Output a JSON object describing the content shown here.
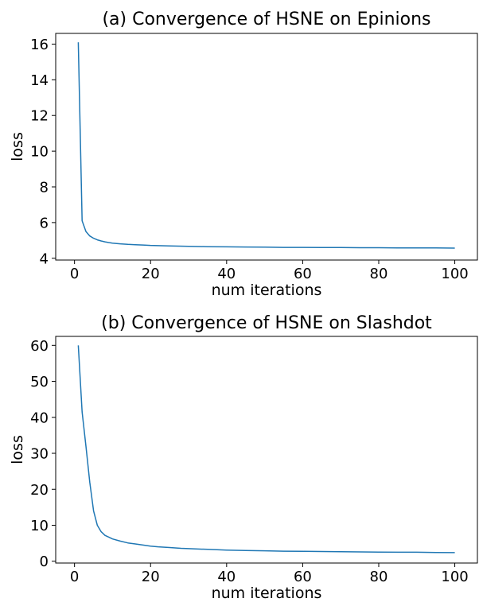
{
  "chart_data": [
    {
      "type": "line",
      "title": "(a) Convergence of HSNE on Epinions",
      "xlabel": "num iterations",
      "ylabel": "loss",
      "xlim": [
        -4.95,
        105.95
      ],
      "ylim": [
        3.9,
        16.6
      ],
      "xticks": [
        0,
        20,
        40,
        60,
        80,
        100
      ],
      "yticks": [
        4,
        6,
        8,
        10,
        12,
        14,
        16
      ],
      "grid": false,
      "color": "#1f77b4",
      "series": [
        {
          "x": [
            1,
            2,
            3,
            4,
            5,
            6,
            7,
            8,
            9,
            10,
            12,
            14,
            16,
            18,
            20,
            25,
            30,
            35,
            40,
            45,
            50,
            55,
            60,
            65,
            70,
            75,
            80,
            85,
            90,
            95,
            100
          ],
          "values": [
            16.1,
            6.1,
            5.5,
            5.25,
            5.12,
            5.03,
            4.97,
            4.92,
            4.88,
            4.85,
            4.81,
            4.78,
            4.76,
            4.74,
            4.72,
            4.69,
            4.67,
            4.65,
            4.64,
            4.63,
            4.62,
            4.61,
            4.61,
            4.6,
            4.6,
            4.59,
            4.59,
            4.58,
            4.58,
            4.58,
            4.57
          ]
        }
      ]
    },
    {
      "type": "line",
      "title": "(b) Convergence of HSNE on Slashdot",
      "xlabel": "num iterations",
      "ylabel": "loss",
      "xlim": [
        -4.95,
        105.95
      ],
      "ylim": [
        -0.5,
        62.5
      ],
      "xticks": [
        0,
        20,
        40,
        60,
        80,
        100
      ],
      "yticks": [
        0,
        10,
        20,
        30,
        40,
        50,
        60
      ],
      "grid": false,
      "color": "#1f77b4",
      "series": [
        {
          "x": [
            1,
            2,
            3,
            4,
            5,
            6,
            7,
            8,
            9,
            10,
            12,
            14,
            16,
            18,
            20,
            22,
            25,
            28,
            30,
            35,
            40,
            45,
            50,
            55,
            60,
            65,
            70,
            75,
            80,
            85,
            90,
            95,
            100
          ],
          "values": [
            60,
            41.5,
            32,
            22,
            14,
            10,
            8.2,
            7.2,
            6.7,
            6.2,
            5.6,
            5.1,
            4.8,
            4.5,
            4.2,
            4.0,
            3.8,
            3.6,
            3.5,
            3.3,
            3.1,
            3.0,
            2.9,
            2.8,
            2.75,
            2.7,
            2.65,
            2.6,
            2.55,
            2.5,
            2.5,
            2.45,
            2.4
          ]
        }
      ]
    }
  ]
}
